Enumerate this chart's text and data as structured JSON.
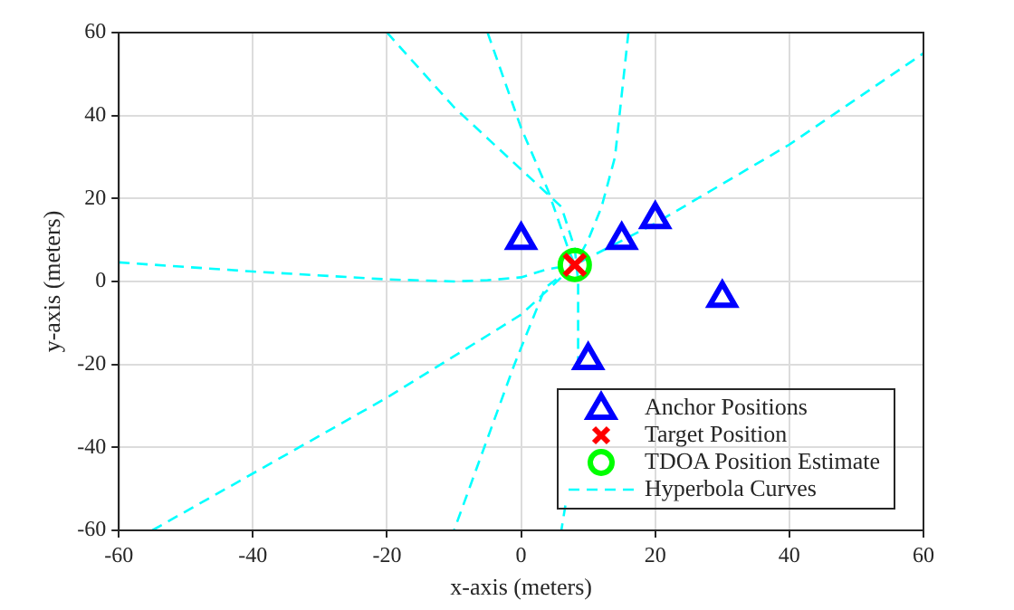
{
  "chart_data": {
    "type": "scatter",
    "xlabel": "x-axis (meters)",
    "ylabel": "y-axis (meters)",
    "xlim": [
      -60,
      60
    ],
    "xticks": [
      -60,
      -40,
      -20,
      0,
      20,
      40,
      60
    ],
    "ylim": [
      -60,
      60
    ],
    "yticks": [
      -60,
      -40,
      -20,
      0,
      20,
      40,
      60
    ],
    "grid": true,
    "legend": "bottom right",
    "series": [
      {
        "name": "Anchor Positions",
        "marker": "triangle",
        "color": "#0000ff",
        "x": [
          0,
          15,
          20,
          30,
          10
        ],
        "values": [
          10,
          10,
          15,
          -4,
          -19
        ]
      },
      {
        "name": "Target Position",
        "marker": "cross",
        "color": "#ff0000",
        "x": [
          8
        ],
        "values": [
          4
        ]
      },
      {
        "name": "TDOA Position Estimate",
        "marker": "circle",
        "color": "#00ff00",
        "x": [
          8
        ],
        "values": [
          4
        ]
      },
      {
        "name": "Hyperbola Curves",
        "type": "line",
        "line_style": "dashed",
        "marker": "none",
        "color": "#00ffff",
        "x": [
          -60,
          -40,
          -20,
          -10,
          -5,
          0,
          4,
          8
        ],
        "values": [
          4.6,
          2.4,
          0.5,
          0,
          0.3,
          1,
          3,
          4
        ]
      },
      {
        "type": "line",
        "line_style": "dashed",
        "marker": "none",
        "color": "#00ffff",
        "x": [
          -20,
          -10,
          0,
          6,
          8,
          8.5,
          8.5,
          7,
          6.6,
          6
        ],
        "values": [
          60,
          42,
          27,
          18,
          8,
          0,
          -20,
          null,
          -54,
          -60
        ]
      },
      {
        "type": "line",
        "line_style": "dashed",
        "marker": "none",
        "color": "#00ffff",
        "x": [
          -5,
          0,
          4,
          7,
          8,
          3.6,
          -1,
          -10
        ],
        "values": [
          60,
          37,
          22,
          8,
          4,
          -1.5,
          -20,
          -60
        ]
      },
      {
        "type": "line",
        "line_style": "dashed",
        "marker": "none",
        "color": "#00ffff",
        "x": [
          16,
          14,
          12,
          10,
          8
        ],
        "values": [
          60,
          30,
          18,
          10,
          4
        ]
      },
      {
        "type": "line",
        "line_style": "dashed",
        "marker": "none",
        "color": "#00ffff",
        "x": [
          -55,
          -20,
          0,
          8,
          20,
          40,
          60
        ],
        "values": [
          -60,
          -28,
          -8,
          4,
          14,
          33,
          55
        ]
      }
    ]
  }
}
